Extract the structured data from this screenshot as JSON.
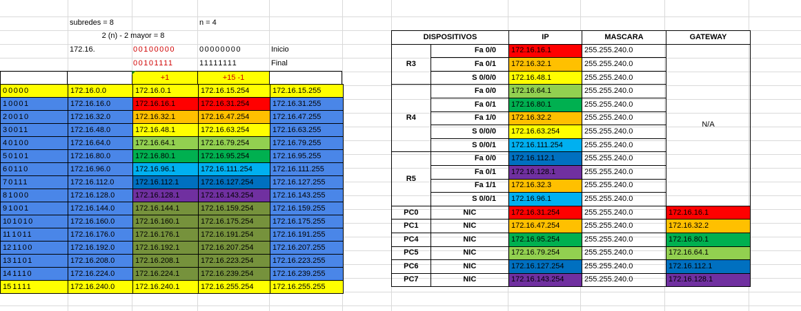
{
  "header": {
    "subredes": "subredes = 8",
    "n": "n = 4",
    "formula": "2 (n) - 2 mayor = 8",
    "prefix": "172.16.",
    "inicio_red": "00100000",
    "inicio_host": "00000000",
    "inicio_label": "Inicio",
    "final_red": "00101111",
    "final_host": "11111111",
    "final_label": "Final",
    "plus1": "+1",
    "plus15": "+15   -1"
  },
  "subnets": [
    {
      "num": "0",
      "bits": "0000",
      "net": "172.16.0.0",
      "first": "172.16.0.1",
      "last": "172.16.15.254",
      "bcast": "172.16.15.255",
      "row_color": "#ffff00",
      "first_color": "#ffff00",
      "last_color": "#ffff00"
    },
    {
      "num": "1",
      "bits": "0001",
      "net": "172.16.16.0",
      "first": "172.16.16.1",
      "last": "172.16.31.254",
      "bcast": "172.16.31.255",
      "row_color": "#4a86e8",
      "first_color": "#ff0000",
      "last_color": "#ff0000"
    },
    {
      "num": "2",
      "bits": "0010",
      "net": "172.16.32.0",
      "first": "172.16.32.1",
      "last": "172.16.47.254",
      "bcast": "172.16.47.255",
      "row_color": "#4a86e8",
      "first_color": "#ffc000",
      "last_color": "#ffc000"
    },
    {
      "num": "3",
      "bits": "0011",
      "net": "172.16.48.0",
      "first": "172.16.48.1",
      "last": "172.16.63.254",
      "bcast": "172.16.63.255",
      "row_color": "#4a86e8",
      "first_color": "#ffff00",
      "last_color": "#ffff00"
    },
    {
      "num": "4",
      "bits": "0100",
      "net": "172.16.64.0",
      "first": "172.16.64.1",
      "last": "172.16.79.254",
      "bcast": "172.16.79.255",
      "row_color": "#4a86e8",
      "first_color": "#92d050",
      "last_color": "#92d050"
    },
    {
      "num": "5",
      "bits": "0101",
      "net": "172.16.80.0",
      "first": "172.16.80.1",
      "last": "172.16.95.254",
      "bcast": "172.16.95.255",
      "row_color": "#4a86e8",
      "first_color": "#00b050",
      "last_color": "#00b050"
    },
    {
      "num": "6",
      "bits": "0110",
      "net": "172.16.96.0",
      "first": "172.16.96.1",
      "last": "172.16.111.254",
      "bcast": "172.16.111.255",
      "row_color": "#4a86e8",
      "first_color": "#00b0f0",
      "last_color": "#00b0f0"
    },
    {
      "num": "7",
      "bits": "0111",
      "net": "172.16.112.0",
      "first": "172.16.112.1",
      "last": "172.16.127.254",
      "bcast": "172.16.127.255",
      "row_color": "#4a86e8",
      "first_color": "#0070c0",
      "last_color": "#0070c0"
    },
    {
      "num": "8",
      "bits": "1000",
      "net": "172.16.128.0",
      "first": "172.16.128.1",
      "last": "172.16.143.254",
      "bcast": "172.16.143.255",
      "row_color": "#4a86e8",
      "first_color": "#7030a0",
      "last_color": "#7030a0"
    },
    {
      "num": "9",
      "bits": "1001",
      "net": "172.16.144.0",
      "first": "172.16.144.1",
      "last": "172.16.159.254",
      "bcast": "172.16.159.255",
      "row_color": "#4a86e8",
      "first_color": "#76923c",
      "last_color": "#76923c"
    },
    {
      "num": "10",
      "bits": "1010",
      "net": "172.16.160.0",
      "first": "172.16.160.1",
      "last": "172.16.175.254",
      "bcast": "172.16.175.255",
      "row_color": "#4a86e8",
      "first_color": "#76923c",
      "last_color": "#76923c"
    },
    {
      "num": "11",
      "bits": "1011",
      "net": "172.16.176.0",
      "first": "172.16.176.1",
      "last": "172.16.191.254",
      "bcast": "172.16.191.255",
      "row_color": "#4a86e8",
      "first_color": "#76923c",
      "last_color": "#76923c"
    },
    {
      "num": "12",
      "bits": "1100",
      "net": "172.16.192.0",
      "first": "172.16.192.1",
      "last": "172.16.207.254",
      "bcast": "172.16.207.255",
      "row_color": "#4a86e8",
      "first_color": "#76923c",
      "last_color": "#76923c"
    },
    {
      "num": "13",
      "bits": "1101",
      "net": "172.16.208.0",
      "first": "172.16.208.1",
      "last": "172.16.223.254",
      "bcast": "172.16.223.255",
      "row_color": "#4a86e8",
      "first_color": "#76923c",
      "last_color": "#76923c"
    },
    {
      "num": "14",
      "bits": "1110",
      "net": "172.16.224.0",
      "first": "172.16.224.1",
      "last": "172.16.239.254",
      "bcast": "172.16.239.255",
      "row_color": "#4a86e8",
      "first_color": "#76923c",
      "last_color": "#76923c"
    },
    {
      "num": "15",
      "bits": "1111",
      "net": "172.16.240.0",
      "first": "172.16.240.1",
      "last": "172.16.255.254",
      "bcast": "172.16.255.255",
      "row_color": "#ffff00",
      "first_color": "#ffff00",
      "last_color": "#ffff00"
    }
  ],
  "devices": {
    "headers": [
      "DISPOSITIVOS",
      "IP",
      "MASCARA",
      "GATEWAY"
    ],
    "na": "N/A",
    "groups": [
      {
        "name": "R3",
        "rows": [
          {
            "iface": "Fa 0/0",
            "ip": "172.16.16.1",
            "color": "#ff0000",
            "mask": "255.255.240.0"
          },
          {
            "iface": "Fa 0/1",
            "ip": "172.16.32.1",
            "color": "#ffc000",
            "mask": "255.255.240.0"
          },
          {
            "iface": "S 0/0/0",
            "ip": "172.16.48.1",
            "color": "#ffff00",
            "mask": "255.255.240.0"
          }
        ]
      },
      {
        "name": "R4",
        "rows": [
          {
            "iface": "Fa 0/0",
            "ip": "172.16.64.1",
            "color": "#92d050",
            "mask": "255.255.240.0"
          },
          {
            "iface": "Fa 0/1",
            "ip": "172.16.80.1",
            "color": "#00b050",
            "mask": "255.255.240.0"
          },
          {
            "iface": "Fa 1/0",
            "ip": "172.16.32.2",
            "color": "#ffc000",
            "mask": "255.255.240.0"
          },
          {
            "iface": "S 0/0/0",
            "ip": "172.16.63.254",
            "color": "#ffff00",
            "mask": "255.255.240.0"
          },
          {
            "iface": "S 0/0/1",
            "ip": "172.16.111.254",
            "color": "#00b0f0",
            "mask": "255.255.240.0"
          }
        ]
      },
      {
        "name": "R5",
        "rows": [
          {
            "iface": "Fa 0/0",
            "ip": "172.16.112.1",
            "color": "#0070c0",
            "mask": "255.255.240.0"
          },
          {
            "iface": "Fa 0/1",
            "ip": "172.16.128.1",
            "color": "#7030a0",
            "mask": "255.255.240.0"
          },
          {
            "iface": "Fa 1/1",
            "ip": "172.16.32.3",
            "color": "#ffc000",
            "mask": "255.255.240.0"
          },
          {
            "iface": "S 0/0/1",
            "ip": "172.16.96.1",
            "color": "#00b0f0",
            "mask": "255.255.240.0"
          }
        ]
      }
    ],
    "pcs": [
      {
        "name": "PC0",
        "iface": "NIC",
        "ip": "172.16.31.254",
        "color": "#ff0000",
        "mask": "255.255.240.0",
        "gw": "172.16.16.1"
      },
      {
        "name": "PC1",
        "iface": "NIC",
        "ip": "172.16.47.254",
        "color": "#ffc000",
        "mask": "255.255.240.0",
        "gw": "172.16.32.2"
      },
      {
        "name": "PC4",
        "iface": "NIC",
        "ip": "172.16.95.254",
        "color": "#00b050",
        "mask": "255.255.240.0",
        "gw": "172.16.80.1"
      },
      {
        "name": "PC5",
        "iface": "NIC",
        "ip": "172.16.79.254",
        "color": "#92d050",
        "mask": "255.255.240.0",
        "gw": "172.16.64.1"
      },
      {
        "name": "PC6",
        "iface": "NIC",
        "ip": "172.16.127.254",
        "color": "#0070c0",
        "mask": "255.255.240.0",
        "gw": "172.16.112.1"
      },
      {
        "name": "PC7",
        "iface": "NIC",
        "ip": "172.16.143.254",
        "color": "#7030a0",
        "mask": "255.255.240.0",
        "gw": "172.16.128.1"
      }
    ]
  }
}
